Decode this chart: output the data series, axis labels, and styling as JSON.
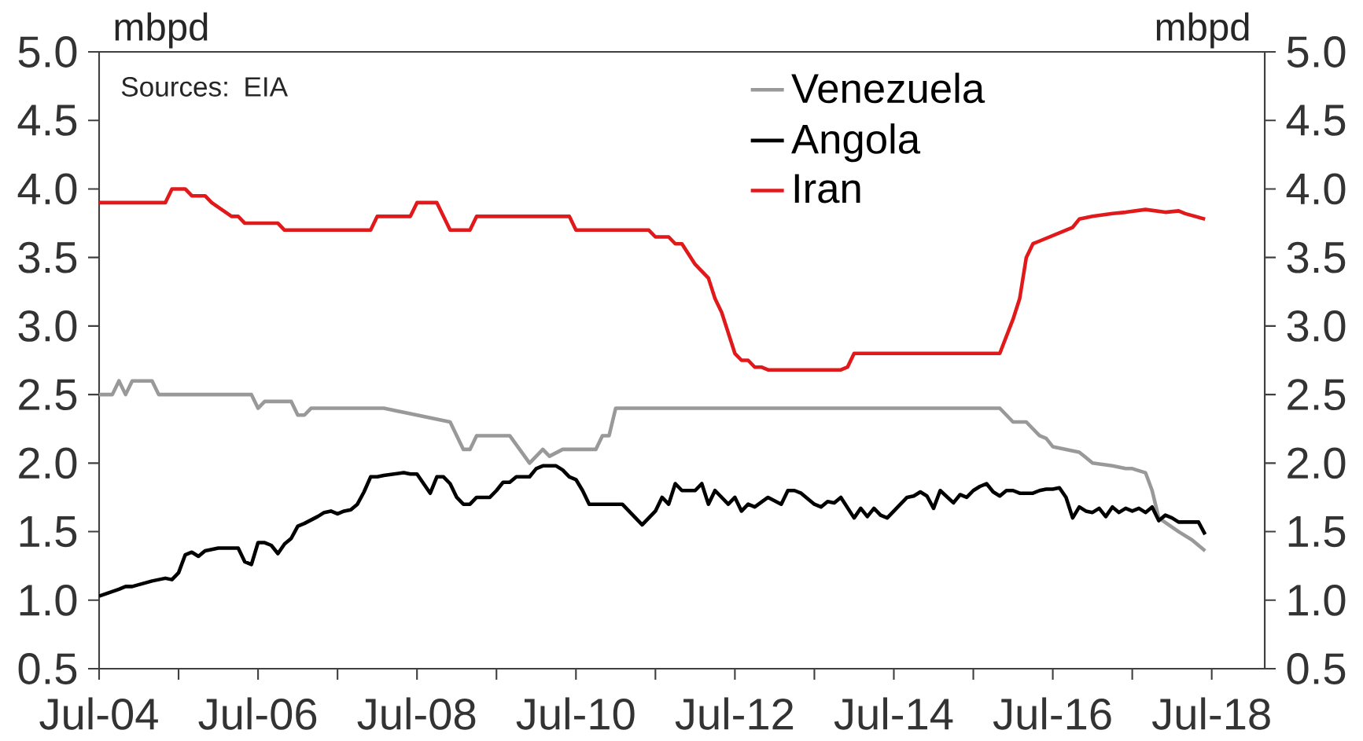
{
  "chart_data": {
    "type": "line",
    "xlabel": null,
    "ylabel": "mbpd",
    "y2label": "mbpd",
    "annotations": [
      "Sources: EIA"
    ],
    "xlim": [
      "2004-07",
      "2019-03"
    ],
    "xticks": [
      {
        "value": "2004-07",
        "label": "Jul-04"
      },
      {
        "value": "2005-07",
        "label": null
      },
      {
        "value": "2006-07",
        "label": "Jul-06"
      },
      {
        "value": "2007-07",
        "label": null
      },
      {
        "value": "2008-07",
        "label": "Jul-08"
      },
      {
        "value": "2009-07",
        "label": null
      },
      {
        "value": "2010-07",
        "label": "Jul-10"
      },
      {
        "value": "2011-07",
        "label": null
      },
      {
        "value": "2012-07",
        "label": "Jul-12"
      },
      {
        "value": "2013-07",
        "label": null
      },
      {
        "value": "2014-07",
        "label": "Jul-14"
      },
      {
        "value": "2015-07",
        "label": null
      },
      {
        "value": "2016-07",
        "label": "Jul-16"
      },
      {
        "value": "2017-07",
        "label": null
      },
      {
        "value": "2018-07",
        "label": "Jul-18"
      }
    ],
    "ylim": [
      0.5,
      5.0
    ],
    "yticks": [
      0.5,
      {
        "value": 1,
        "label": "1.0"
      },
      1.5,
      {
        "value": 2,
        "label": "2.0"
      },
      2.5,
      {
        "value": 3,
        "label": "3.0"
      },
      3.5,
      {
        "value": 4,
        "label": "4.0"
      },
      4.5,
      {
        "value": 5,
        "label": "5.0"
      }
    ],
    "y2lim": [
      0.5,
      5.0
    ],
    "y2ticks": [
      0.5,
      {
        "value": 1,
        "label": "1.0"
      },
      1.5,
      {
        "value": 2,
        "label": "2.0"
      },
      2.5,
      {
        "value": 3,
        "label": "3.0"
      },
      3.5,
      {
        "value": 4,
        "label": "4.0"
      },
      4.5,
      {
        "value": 5,
        "label": "5.0"
      }
    ],
    "legend": "top",
    "line_style": "solid",
    "series": [
      {
        "name": "Venezuela",
        "color": "#999999",
        "x": [
          "2004-07",
          "2004-09",
          "2004-10",
          "2004-11",
          "2004-12",
          "2005-03",
          "2005-04",
          "2006-06",
          "2006-07",
          "2006-08",
          "2006-12",
          "2007-01",
          "2007-02",
          "2007-03",
          "2008-02",
          "2008-12",
          "2009-02",
          "2009-03",
          "2009-04",
          "2009-09",
          "2009-12",
          "2010-02",
          "2010-03",
          "2010-05",
          "2010-10",
          "2010-11",
          "2010-12",
          "2011-01",
          "2015-11",
          "2016-01",
          "2016-03",
          "2016-05",
          "2016-06",
          "2016-07",
          "2016-11",
          "2016-12",
          "2017-01",
          "2017-04",
          "2017-06",
          "2017-07",
          "2017-09",
          "2017-10",
          "2017-11",
          "2018-02",
          "2018-04",
          "2018-06"
        ],
        "values": [
          2.5,
          2.5,
          2.6,
          2.5,
          2.6,
          2.6,
          2.5,
          2.5,
          2.4,
          2.45,
          2.45,
          2.35,
          2.35,
          2.4,
          2.4,
          2.3,
          2.1,
          2.1,
          2.2,
          2.2,
          2.0,
          2.1,
          2.05,
          2.1,
          2.1,
          2.2,
          2.2,
          2.4,
          2.4,
          2.3,
          2.3,
          2.2,
          2.18,
          2.12,
          2.08,
          2.04,
          2.0,
          1.98,
          1.96,
          1.96,
          1.93,
          1.8,
          1.6,
          1.5,
          1.44,
          1.36
        ]
      },
      {
        "name": "Angola",
        "color": "#000000",
        "x": [
          "2004-07",
          "2004-10",
          "2004-11",
          "2004-12",
          "2005-03",
          "2005-05",
          "2005-06",
          "2005-07",
          "2005-08",
          "2005-09",
          "2005-10",
          "2005-11",
          "2006-01",
          "2006-04",
          "2006-05",
          "2006-06",
          "2006-07",
          "2006-08",
          "2006-09",
          "2006-10",
          "2006-11",
          "2006-12",
          "2007-01",
          "2007-02",
          "2007-04",
          "2007-05",
          "2007-06",
          "2007-07",
          "2007-08",
          "2007-09",
          "2007-10",
          "2007-11",
          "2007-12",
          "2008-01",
          "2008-02",
          "2008-05",
          "2008-06",
          "2008-07",
          "2008-09",
          "2008-10",
          "2008-11",
          "2008-12",
          "2009-01",
          "2009-02",
          "2009-03",
          "2009-04",
          "2009-06",
          "2009-07",
          "2009-08",
          "2009-09",
          "2009-10",
          "2009-12",
          "2010-01",
          "2010-02",
          "2010-04",
          "2010-05",
          "2010-06",
          "2010-07",
          "2010-08",
          "2010-09",
          "2011-02",
          "2011-03",
          "2011-05",
          "2011-07",
          "2011-08",
          "2011-09",
          "2011-10",
          "2011-11",
          "2012-01",
          "2012-02",
          "2012-03",
          "2012-04",
          "2012-06",
          "2012-07",
          "2012-08",
          "2012-09",
          "2012-10",
          "2012-12",
          "2013-02",
          "2013-03",
          "2013-04",
          "2013-05",
          "2013-07",
          "2013-08",
          "2013-09",
          "2013-10",
          "2013-11",
          "2014-01",
          "2014-02",
          "2014-03",
          "2014-04",
          "2014-05",
          "2014-06",
          "2014-07",
          "2014-09",
          "2014-10",
          "2014-11",
          "2014-12",
          "2015-01",
          "2015-02",
          "2015-04",
          "2015-05",
          "2015-06",
          "2015-07",
          "2015-08",
          "2015-09",
          "2015-10",
          "2015-11",
          "2015-12",
          "2016-01",
          "2016-02",
          "2016-04",
          "2016-05",
          "2016-06",
          "2016-07",
          "2016-08",
          "2016-09",
          "2016-10",
          "2016-11",
          "2016-12",
          "2017-01",
          "2017-02",
          "2017-03",
          "2017-04",
          "2017-05",
          "2017-06",
          "2017-07",
          "2017-08",
          "2017-09",
          "2017-10",
          "2017-11",
          "2017-12",
          "2018-01",
          "2018-02",
          "2018-05",
          "2018-06"
        ],
        "values": [
          1.03,
          1.08,
          1.1,
          1.1,
          1.14,
          1.16,
          1.15,
          1.2,
          1.33,
          1.35,
          1.32,
          1.36,
          1.38,
          1.38,
          1.28,
          1.26,
          1.42,
          1.42,
          1.4,
          1.34,
          1.41,
          1.45,
          1.54,
          1.56,
          1.61,
          1.64,
          1.65,
          1.63,
          1.65,
          1.66,
          1.7,
          1.79,
          1.9,
          1.9,
          1.91,
          1.93,
          1.92,
          1.92,
          1.78,
          1.9,
          1.9,
          1.85,
          1.75,
          1.7,
          1.7,
          1.75,
          1.75,
          1.8,
          1.86,
          1.86,
          1.9,
          1.9,
          1.96,
          1.98,
          1.98,
          1.95,
          1.9,
          1.88,
          1.8,
          1.7,
          1.7,
          1.65,
          1.55,
          1.65,
          1.75,
          1.7,
          1.85,
          1.8,
          1.8,
          1.85,
          1.7,
          1.8,
          1.7,
          1.75,
          1.65,
          1.7,
          1.68,
          1.75,
          1.7,
          1.8,
          1.8,
          1.78,
          1.7,
          1.68,
          1.72,
          1.71,
          1.75,
          1.6,
          1.67,
          1.61,
          1.67,
          1.62,
          1.6,
          1.65,
          1.75,
          1.76,
          1.79,
          1.76,
          1.67,
          1.8,
          1.71,
          1.77,
          1.75,
          1.8,
          1.83,
          1.85,
          1.79,
          1.76,
          1.8,
          1.8,
          1.78,
          1.78,
          1.8,
          1.81,
          1.81,
          1.82,
          1.75,
          1.6,
          1.68,
          1.65,
          1.64,
          1.67,
          1.61,
          1.68,
          1.64,
          1.67,
          1.65,
          1.67,
          1.64,
          1.68,
          1.58,
          1.62,
          1.6,
          1.57,
          1.57,
          1.48
        ]
      },
      {
        "name": "Iran",
        "color": "#e2191b",
        "x": [
          "2004-07",
          "2005-05",
          "2005-06",
          "2005-08",
          "2005-09",
          "2005-11",
          "2005-12",
          "2006-03",
          "2006-04",
          "2006-05",
          "2006-10",
          "2006-11",
          "2007-12",
          "2008-01",
          "2008-06",
          "2008-07",
          "2008-10",
          "2008-12",
          "2009-03",
          "2009-04",
          "2010-06",
          "2010-07",
          "2011-06",
          "2011-07",
          "2011-09",
          "2011-10",
          "2011-11",
          "2012-01",
          "2012-03",
          "2012-04",
          "2012-05",
          "2012-07",
          "2012-08",
          "2012-09",
          "2012-10",
          "2012-11",
          "2012-12",
          "2013-11",
          "2013-12",
          "2014-01",
          "2015-11",
          "2016-01",
          "2016-02",
          "2016-03",
          "2016-04",
          "2016-05",
          "2016-09",
          "2016-10",
          "2016-11",
          "2017-01",
          "2017-04",
          "2017-06",
          "2017-09",
          "2017-12",
          "2018-02",
          "2018-03",
          "2018-06"
        ],
        "values": [
          3.9,
          3.9,
          4.0,
          4.0,
          3.95,
          3.95,
          3.9,
          3.8,
          3.8,
          3.75,
          3.75,
          3.7,
          3.7,
          3.8,
          3.8,
          3.9,
          3.9,
          3.7,
          3.7,
          3.8,
          3.8,
          3.7,
          3.7,
          3.65,
          3.65,
          3.6,
          3.6,
          3.45,
          3.35,
          3.2,
          3.1,
          2.8,
          2.75,
          2.75,
          2.7,
          2.7,
          2.68,
          2.68,
          2.7,
          2.8,
          2.8,
          3.05,
          3.2,
          3.5,
          3.6,
          3.62,
          3.7,
          3.72,
          3.78,
          3.8,
          3.82,
          3.83,
          3.85,
          3.83,
          3.84,
          3.82,
          3.78
        ]
      }
    ]
  }
}
